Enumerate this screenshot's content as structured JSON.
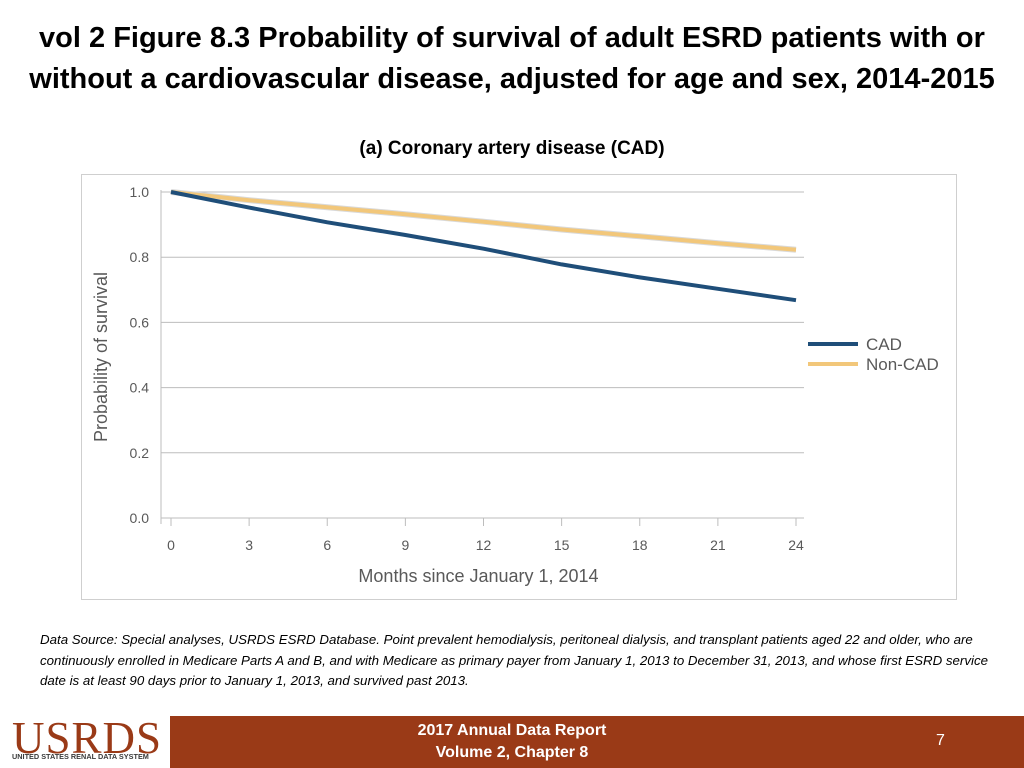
{
  "slide": {
    "title_line1": "vol 2 Figure 8.3 Probability of survival of adult ESRD patients with or",
    "title_line2": "without a cardiovascular disease, adjusted for age and sex, 2014-2015",
    "subtitle": "(a) Coronary artery disease (CAD)"
  },
  "chart_data": {
    "type": "line",
    "title": "(a) Coronary artery disease (CAD)",
    "xlabel": "Months since January 1, 2014",
    "ylabel": "Probability of survival",
    "x_ticks": [
      0,
      3,
      6,
      9,
      12,
      15,
      18,
      21,
      24
    ],
    "y_ticks": [
      "0.0",
      "0.2",
      "0.4",
      "0.6",
      "0.8",
      "1.0"
    ],
    "xlim": [
      0,
      24
    ],
    "ylim": [
      0,
      1.0
    ],
    "grid": true,
    "legend_position": "right",
    "series": [
      {
        "name": "CAD",
        "color": "#1f4e79",
        "x": [
          0,
          3,
          6,
          9,
          12,
          15,
          18,
          21,
          24
        ],
        "y": [
          1.0,
          0.952,
          0.907,
          0.868,
          0.826,
          0.778,
          0.738,
          0.703,
          0.668
        ]
      },
      {
        "name": "Non-CAD",
        "color": "#f2c77a",
        "x": [
          0,
          3,
          6,
          9,
          12,
          15,
          18,
          21,
          24
        ],
        "y": [
          1.0,
          0.975,
          0.953,
          0.932,
          0.909,
          0.885,
          0.864,
          0.843,
          0.823
        ]
      }
    ]
  },
  "footnote": "Data Source: Special analyses, USRDS ESRD Database. Point prevalent hemodialysis, peritoneal dialysis, and transplant patients aged 22 and older, who are continuously enrolled in Medicare Parts A and B, and with Medicare as primary payer from January 1, 2013 to December 31, 2013, and whose first ESRD service date is at least 90 days prior to January 1, 2013, and survived past 2013.",
  "footer": {
    "logo_text": "USRDS",
    "logo_subtext": "UNITED STATES RENAL DATA SYSTEM",
    "report_line1": "2017 Annual Data Report",
    "report_line2": "Volume 2, Chapter 8",
    "page_number": "7"
  }
}
